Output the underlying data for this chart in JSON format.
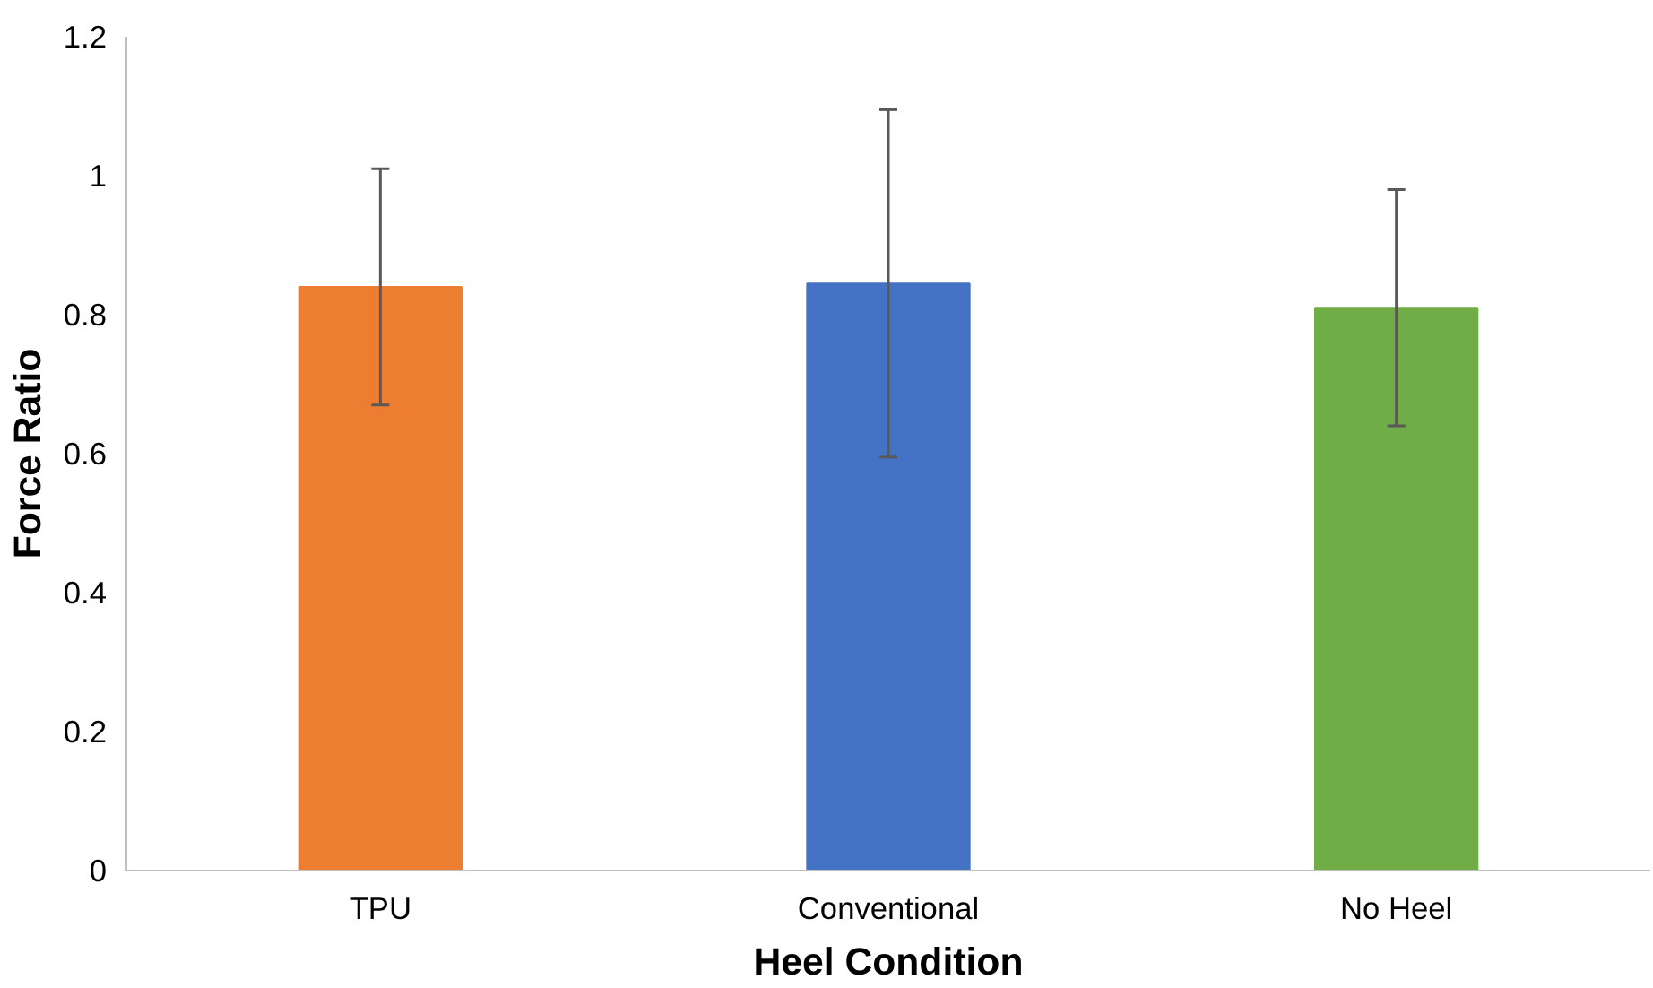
{
  "chart_data": {
    "type": "bar",
    "xlabel": "Heel Condition",
    "ylabel": "Force Ratio",
    "categories": [
      "TPU",
      "Conventional",
      "No Heel"
    ],
    "values": [
      0.84,
      0.845,
      0.81
    ],
    "colors": [
      "#ed7d31",
      "#4472c4",
      "#70ad47"
    ],
    "errors": [
      0.17,
      0.25,
      0.17
    ],
    "ylim": [
      0,
      1.2
    ],
    "yticks": [
      0,
      0.2,
      0.4,
      0.6,
      0.8,
      1,
      1.2
    ],
    "grid": false
  }
}
